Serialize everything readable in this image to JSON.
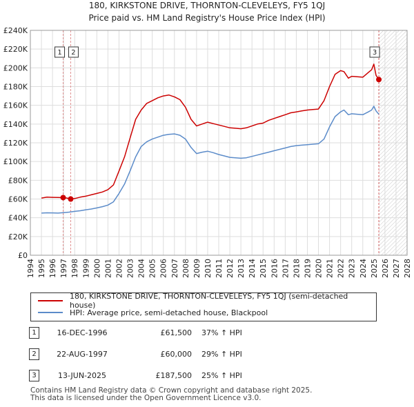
{
  "chart_data": {
    "type": "line",
    "title": "180, KIRKSTONE DRIVE, THORNTON-CLEVELEYS, FY5 1QJ",
    "subtitle": "Price paid vs. HM Land Registry's House Price Index (HPI)",
    "xlabel": "",
    "ylabel": "",
    "xlim": [
      1994,
      2028
    ],
    "ylim": [
      0,
      240000
    ],
    "y_ticks": [
      0,
      20000,
      40000,
      60000,
      80000,
      100000,
      120000,
      140000,
      160000,
      180000,
      200000,
      220000,
      240000
    ],
    "y_tick_labels": [
      "£0",
      "£20K",
      "£40K",
      "£60K",
      "£80K",
      "£100K",
      "£120K",
      "£140K",
      "£160K",
      "£180K",
      "£200K",
      "£220K",
      "£240K"
    ],
    "x_ticks": [
      1994,
      1995,
      1996,
      1997,
      1998,
      1999,
      2000,
      2001,
      2002,
      2003,
      2004,
      2005,
      2006,
      2007,
      2008,
      2009,
      2010,
      2011,
      2012,
      2013,
      2014,
      2015,
      2016,
      2017,
      2018,
      2019,
      2020,
      2021,
      2022,
      2023,
      2024,
      2025,
      2026,
      2027,
      2028
    ],
    "grid": true,
    "series": [
      {
        "name": "180, KIRKSTONE DRIVE, THORNTON-CLEVELEYS, FY5 1QJ (semi-detached house)",
        "color": "#cc0000",
        "x": [
          1995.0,
          1995.5,
          1996.0,
          1996.5,
          1996.96,
          1997.3,
          1997.64,
          1998.0,
          1998.5,
          1999.0,
          1999.5,
          2000.0,
          2000.5,
          2001.0,
          2001.5,
          2002.0,
          2002.5,
          2003.0,
          2003.5,
          2004.0,
          2004.5,
          2005.0,
          2005.5,
          2006.0,
          2006.5,
          2007.0,
          2007.5,
          2008.0,
          2008.5,
          2009.0,
          2009.5,
          2010.0,
          2010.5,
          2011.0,
          2011.5,
          2012.0,
          2012.5,
          2013.0,
          2013.5,
          2014.0,
          2014.5,
          2015.0,
          2015.5,
          2016.0,
          2016.5,
          2017.0,
          2017.5,
          2018.0,
          2018.5,
          2019.0,
          2019.5,
          2020.0,
          2020.5,
          2021.0,
          2021.5,
          2022.0,
          2022.3,
          2022.7,
          2023.0,
          2023.5,
          2024.0,
          2024.5,
          2024.8,
          2025.0,
          2025.2,
          2025.45
        ],
        "values": [
          61000,
          62000,
          61800,
          61600,
          61500,
          61000,
          60000,
          60500,
          62000,
          63000,
          64500,
          66000,
          67500,
          70000,
          75000,
          90000,
          105000,
          125000,
          145000,
          155000,
          162000,
          165000,
          168000,
          170000,
          171000,
          169000,
          166000,
          158000,
          145000,
          138000,
          140000,
          142000,
          140500,
          139000,
          137500,
          136000,
          135500,
          135000,
          136000,
          138000,
          140000,
          141000,
          144000,
          146000,
          148000,
          150000,
          152000,
          153000,
          154000,
          155000,
          155500,
          156000,
          165000,
          180000,
          193000,
          197000,
          196000,
          189000,
          191000,
          190500,
          190000,
          195000,
          198000,
          204000,
          192000,
          187500
        ]
      },
      {
        "name": "HPI: Average price, semi-detached house, Blackpool",
        "color": "#5b8bc9",
        "x": [
          1995.0,
          1995.5,
          1996.0,
          1996.5,
          1997.0,
          1997.5,
          1998.0,
          1998.5,
          1999.0,
          1999.5,
          2000.0,
          2000.5,
          2001.0,
          2001.5,
          2002.0,
          2002.5,
          2003.0,
          2003.5,
          2004.0,
          2004.5,
          2005.0,
          2005.5,
          2006.0,
          2006.5,
          2007.0,
          2007.5,
          2008.0,
          2008.5,
          2009.0,
          2009.5,
          2010.0,
          2010.5,
          2011.0,
          2011.5,
          2012.0,
          2012.5,
          2013.0,
          2013.5,
          2014.0,
          2014.5,
          2015.0,
          2015.5,
          2016.0,
          2016.5,
          2017.0,
          2017.5,
          2018.0,
          2018.5,
          2019.0,
          2019.5,
          2020.0,
          2020.5,
          2021.0,
          2021.5,
          2022.0,
          2022.3,
          2022.7,
          2023.0,
          2023.5,
          2024.0,
          2024.5,
          2024.8,
          2025.0,
          2025.2,
          2025.45
        ],
        "values": [
          45000,
          45300,
          45200,
          45000,
          45500,
          46000,
          46800,
          47500,
          48500,
          49300,
          50500,
          51800,
          53500,
          57000,
          66000,
          76000,
          90000,
          105000,
          116000,
          121000,
          124000,
          126000,
          128000,
          129000,
          129500,
          128000,
          124000,
          115000,
          108500,
          110000,
          111000,
          109500,
          107500,
          106000,
          104500,
          104000,
          103500,
          104000,
          105500,
          107000,
          108500,
          110000,
          111500,
          113000,
          114500,
          116000,
          117000,
          117500,
          118000,
          118500,
          119000,
          124000,
          137000,
          148000,
          153000,
          155000,
          150000,
          151000,
          150500,
          150000,
          153000,
          155000,
          159000,
          154000,
          150500
        ]
      }
    ],
    "markers": [
      {
        "label": "1",
        "x": 1996.96,
        "value": 61500
      },
      {
        "label": "2",
        "x": 1997.64,
        "value": 60000
      },
      {
        "label": "3",
        "x": 2025.45,
        "value": 187500
      }
    ],
    "hatched_region": {
      "from": 2025.45,
      "to": 2028
    }
  },
  "legend": {
    "property": "180, KIRKSTONE DRIVE, THORNTON-CLEVELEYS, FY5 1QJ (semi-detached house)",
    "hpi": "HPI: Average price, semi-detached house, Blackpool"
  },
  "sales": [
    {
      "num": "1",
      "date": "16-DEC-1996",
      "price": "£61,500",
      "hpi": "37% ↑ HPI"
    },
    {
      "num": "2",
      "date": "22-AUG-1997",
      "price": "£60,000",
      "hpi": "29% ↑ HPI"
    },
    {
      "num": "3",
      "date": "13-JUN-2025",
      "price": "£187,500",
      "hpi": "25% ↑ HPI"
    }
  ],
  "footer": {
    "line1": "Contains HM Land Registry data © Crown copyright and database right 2025.",
    "line2": "This data is licensed under the Open Government Licence v3.0."
  }
}
